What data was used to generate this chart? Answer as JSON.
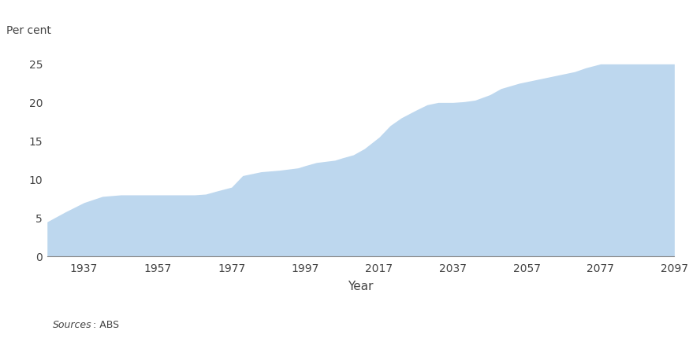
{
  "ylabel": "Per cent",
  "xlabel": "Year",
  "fill_color": "#bdd7ee",
  "background_color": "#ffffff",
  "ylim": [
    0,
    27
  ],
  "yticks": [
    0,
    5,
    10,
    15,
    20,
    25
  ],
  "source_italic": "Sources",
  "source_rest": ": ABS",
  "years": [
    1927,
    1932,
    1937,
    1942,
    1947,
    1950,
    1955,
    1957,
    1960,
    1965,
    1967,
    1970,
    1973,
    1977,
    1980,
    1985,
    1990,
    1995,
    1997,
    2000,
    2005,
    2007,
    2010,
    2013,
    2017,
    2020,
    2023,
    2027,
    2030,
    2033,
    2037,
    2040,
    2043,
    2047,
    2050,
    2055,
    2057,
    2060,
    2063,
    2067,
    2070,
    2073,
    2077,
    2080,
    2085,
    2090,
    2095,
    2097
  ],
  "values": [
    4.5,
    5.8,
    7.0,
    7.8,
    8.0,
    8.0,
    8.0,
    8.0,
    8.0,
    8.0,
    8.0,
    8.1,
    8.5,
    9.0,
    10.5,
    11.0,
    11.2,
    11.5,
    11.8,
    12.2,
    12.5,
    12.8,
    13.2,
    14.0,
    15.5,
    17.0,
    18.0,
    19.0,
    19.7,
    20.0,
    20.0,
    20.1,
    20.3,
    21.0,
    21.8,
    22.5,
    22.7,
    23.0,
    23.3,
    23.7,
    24.0,
    24.5,
    25.0,
    25.0,
    25.0,
    25.0,
    25.0,
    25.0
  ],
  "xticks": [
    1937,
    1957,
    1977,
    1997,
    2017,
    2037,
    2057,
    2077,
    2097
  ],
  "xlim": [
    1927,
    2097
  ]
}
